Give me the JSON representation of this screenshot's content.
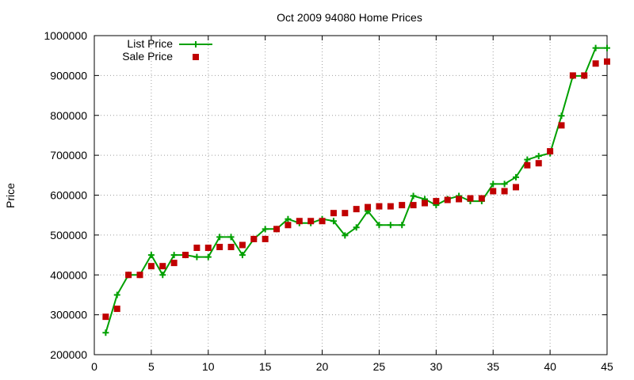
{
  "chart_data": {
    "type": "line",
    "title": "Oct 2009 94080 Home Prices",
    "xlabel": "",
    "ylabel": "Price",
    "xlim": [
      0,
      45
    ],
    "ylim": [
      200000,
      1000000
    ],
    "xticks": [
      0,
      5,
      10,
      15,
      20,
      25,
      30,
      35,
      40,
      45
    ],
    "yticks": [
      200000,
      300000,
      400000,
      500000,
      600000,
      700000,
      800000,
      900000,
      1000000
    ],
    "grid": true,
    "legend_position": "top-left",
    "colors": {
      "list": "#00a000",
      "sale": "#c00000"
    },
    "series": [
      {
        "name": "List Price",
        "style": "line+cross",
        "x": [
          1,
          2,
          3,
          4,
          5,
          6,
          7,
          8,
          9,
          10,
          11,
          12,
          13,
          14,
          15,
          16,
          17,
          18,
          19,
          20,
          21,
          22,
          23,
          24,
          25,
          26,
          27,
          28,
          29,
          30,
          31,
          32,
          33,
          34,
          35,
          36,
          37,
          38,
          39,
          40,
          41,
          42,
          43,
          44,
          45
        ],
        "values": [
          255000,
          350000,
          400000,
          400000,
          450000,
          400000,
          450000,
          450000,
          445000,
          445000,
          495000,
          495000,
          450000,
          490000,
          515000,
          515000,
          540000,
          530000,
          530000,
          540000,
          535000,
          499000,
          519000,
          560000,
          525000,
          525000,
          525000,
          598000,
          590000,
          575000,
          590000,
          598000,
          585000,
          585000,
          628000,
          628000,
          645000,
          689000,
          698000,
          705000,
          799000,
          899000,
          899000,
          969000,
          969000
        ]
      },
      {
        "name": "Sale Price",
        "style": "square",
        "x": [
          1,
          2,
          3,
          4,
          5,
          6,
          7,
          8,
          9,
          10,
          11,
          12,
          13,
          14,
          15,
          16,
          17,
          18,
          19,
          20,
          21,
          22,
          23,
          24,
          25,
          26,
          27,
          28,
          29,
          30,
          31,
          32,
          33,
          34,
          35,
          36,
          37,
          38,
          39,
          40,
          41,
          42,
          43,
          44,
          45
        ],
        "values": [
          295000,
          315000,
          400000,
          400000,
          422000,
          422000,
          430000,
          450000,
          468000,
          468000,
          470000,
          470000,
          475000,
          490000,
          490000,
          515000,
          525000,
          535000,
          535000,
          535000,
          555000,
          555000,
          565000,
          570000,
          572000,
          572000,
          575000,
          575000,
          580000,
          585000,
          588000,
          590000,
          592000,
          592000,
          610000,
          610000,
          620000,
          675000,
          680000,
          710000,
          775000,
          900000,
          900000,
          930000,
          935000
        ]
      }
    ]
  }
}
